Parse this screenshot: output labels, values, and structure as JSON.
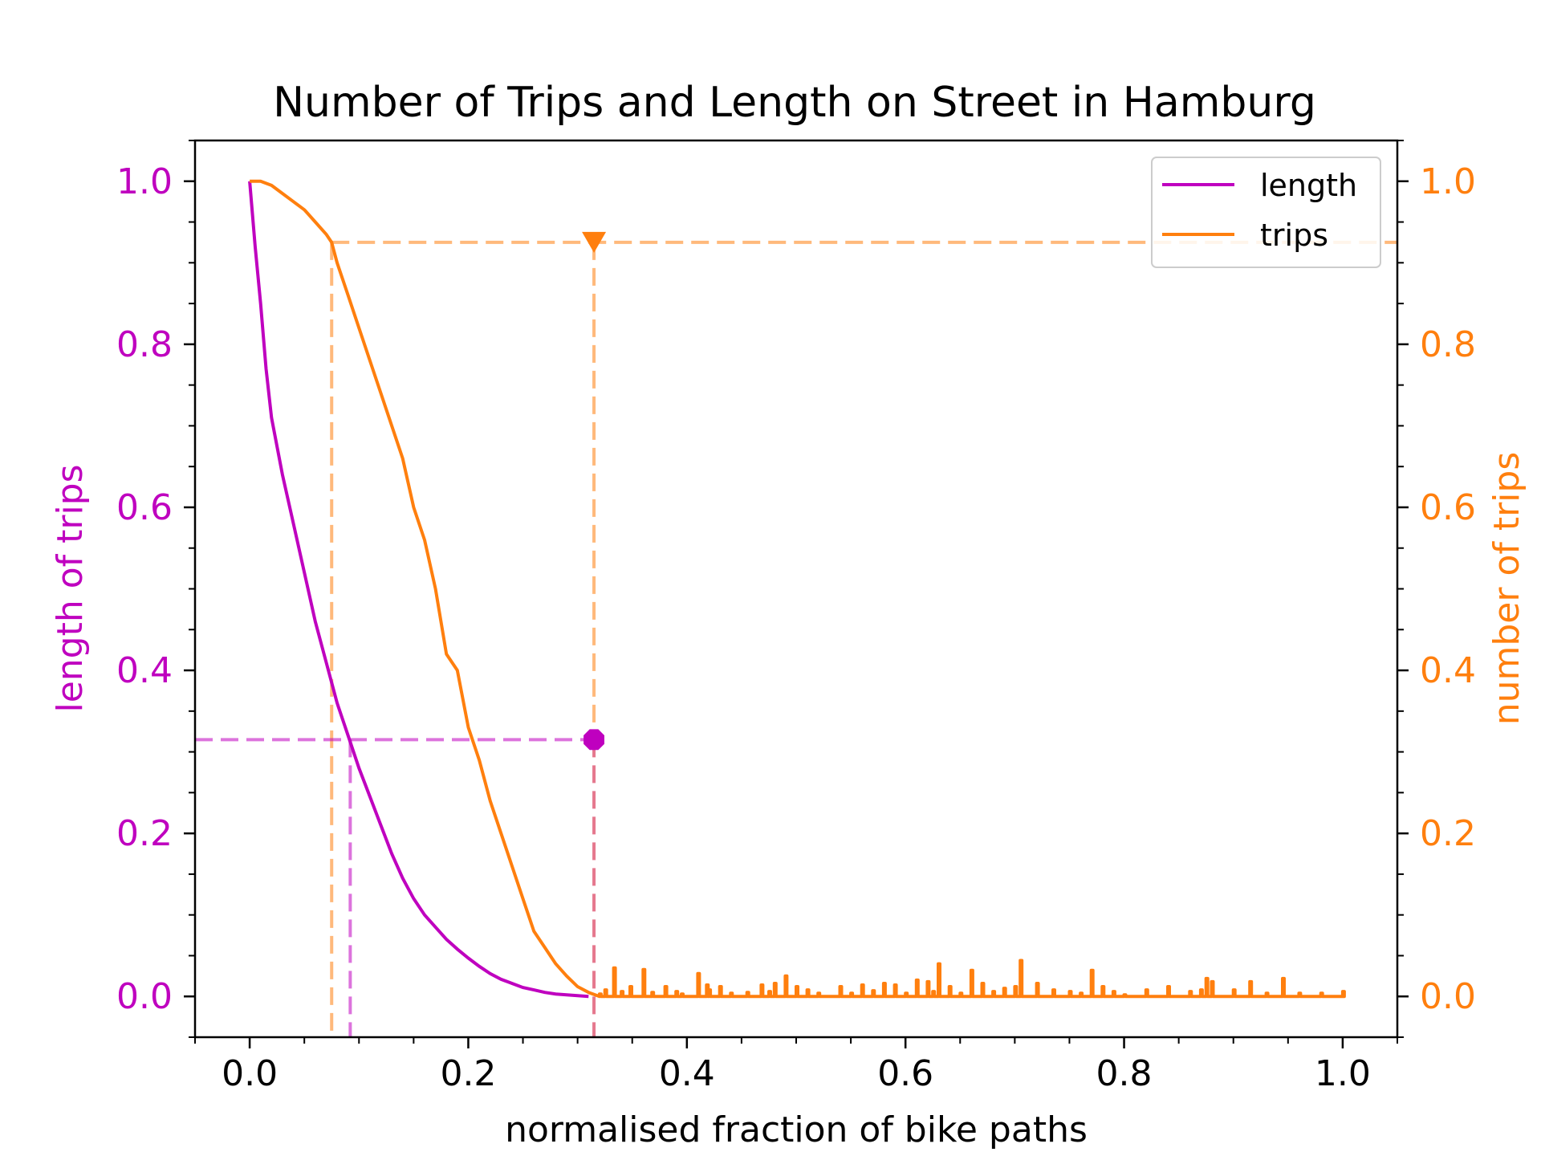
{
  "chart_data": {
    "type": "line",
    "title": "Number of Trips and Length on Street in Hamburg",
    "xlabel": "normalised fraction of bike paths",
    "ylabel_left": "length of trips",
    "ylabel_right": "number of trips",
    "xlim": [
      -0.05,
      1.05
    ],
    "ylim_left": [
      -0.05,
      1.05
    ],
    "ylim_right": [
      -0.05,
      1.05
    ],
    "x_ticks": [
      "0.0",
      "0.2",
      "0.4",
      "0.6",
      "0.8",
      "1.0"
    ],
    "y_ticks_left": [
      "0.0",
      "0.2",
      "0.4",
      "0.6",
      "0.8",
      "1.0"
    ],
    "y_ticks_right": [
      "0.0",
      "0.2",
      "0.4",
      "0.6",
      "0.8",
      "1.0"
    ],
    "grid": false,
    "legend_position": "top-right",
    "colors": {
      "length": "#bf00bf",
      "trips": "#ff7f0e"
    },
    "series": [
      {
        "name": "length",
        "axis": "left",
        "x": [
          0.0,
          0.005,
          0.01,
          0.015,
          0.02,
          0.03,
          0.04,
          0.05,
          0.06,
          0.07,
          0.08,
          0.09,
          0.1,
          0.11,
          0.12,
          0.13,
          0.14,
          0.15,
          0.16,
          0.17,
          0.18,
          0.19,
          0.2,
          0.21,
          0.22,
          0.23,
          0.24,
          0.25,
          0.26,
          0.27,
          0.28,
          0.29,
          0.3,
          0.31
        ],
        "values": [
          1.0,
          0.92,
          0.85,
          0.77,
          0.71,
          0.64,
          0.58,
          0.52,
          0.46,
          0.41,
          0.36,
          0.32,
          0.28,
          0.245,
          0.21,
          0.175,
          0.145,
          0.12,
          0.1,
          0.085,
          0.07,
          0.058,
          0.047,
          0.037,
          0.028,
          0.021,
          0.016,
          0.011,
          0.008,
          0.005,
          0.003,
          0.002,
          0.001,
          0.0
        ]
      },
      {
        "name": "trips",
        "axis": "right",
        "x": [
          0.0,
          0.01,
          0.02,
          0.03,
          0.04,
          0.05,
          0.06,
          0.07,
          0.075,
          0.08,
          0.09,
          0.1,
          0.11,
          0.12,
          0.13,
          0.14,
          0.15,
          0.16,
          0.17,
          0.18,
          0.19,
          0.2,
          0.21,
          0.22,
          0.23,
          0.24,
          0.25,
          0.26,
          0.27,
          0.28,
          0.29,
          0.3,
          0.31
        ],
        "values": [
          1.0,
          1.0,
          0.995,
          0.985,
          0.975,
          0.965,
          0.95,
          0.935,
          0.925,
          0.9,
          0.86,
          0.82,
          0.78,
          0.74,
          0.7,
          0.66,
          0.6,
          0.56,
          0.5,
          0.42,
          0.4,
          0.33,
          0.29,
          0.24,
          0.2,
          0.16,
          0.12,
          0.08,
          0.06,
          0.04,
          0.025,
          0.012,
          0.005
        ],
        "noise_x": [
          0.32,
          0.325,
          0.333,
          0.34,
          0.348,
          0.36,
          0.368,
          0.38,
          0.39,
          0.395,
          0.41,
          0.418,
          0.42,
          0.43,
          0.44,
          0.455,
          0.468,
          0.475,
          0.48,
          0.49,
          0.5,
          0.51,
          0.52,
          0.54,
          0.55,
          0.56,
          0.57,
          0.58,
          0.59,
          0.6,
          0.61,
          0.62,
          0.625,
          0.63,
          0.64,
          0.65,
          0.66,
          0.67,
          0.68,
          0.69,
          0.7,
          0.705,
          0.72,
          0.735,
          0.75,
          0.76,
          0.77,
          0.78,
          0.79,
          0.8,
          0.82,
          0.84,
          0.86,
          0.87,
          0.875,
          0.88,
          0.9,
          0.915,
          0.93,
          0.945,
          0.96,
          0.98,
          1.0
        ],
        "noise_values": [
          0.003,
          0.008,
          0.035,
          0.006,
          0.012,
          0.033,
          0.005,
          0.012,
          0.006,
          0.003,
          0.028,
          0.014,
          0.008,
          0.012,
          0.004,
          0.005,
          0.014,
          0.006,
          0.016,
          0.025,
          0.012,
          0.008,
          0.004,
          0.012,
          0.004,
          0.014,
          0.007,
          0.016,
          0.014,
          0.004,
          0.02,
          0.018,
          0.006,
          0.04,
          0.012,
          0.004,
          0.032,
          0.016,
          0.006,
          0.01,
          0.012,
          0.044,
          0.016,
          0.008,
          0.006,
          0.004,
          0.032,
          0.012,
          0.006,
          0.002,
          0.008,
          0.012,
          0.006,
          0.008,
          0.022,
          0.018,
          0.008,
          0.018,
          0.004,
          0.022,
          0.004,
          0.004,
          0.006
        ]
      }
    ],
    "reference_lines": {
      "orange_horizontal_y": 0.925,
      "orange_vertical_x": 0.075,
      "purple_vertical_x": 0.092,
      "purple_horizontal_y": 0.315,
      "marker_x": 0.315
    }
  }
}
